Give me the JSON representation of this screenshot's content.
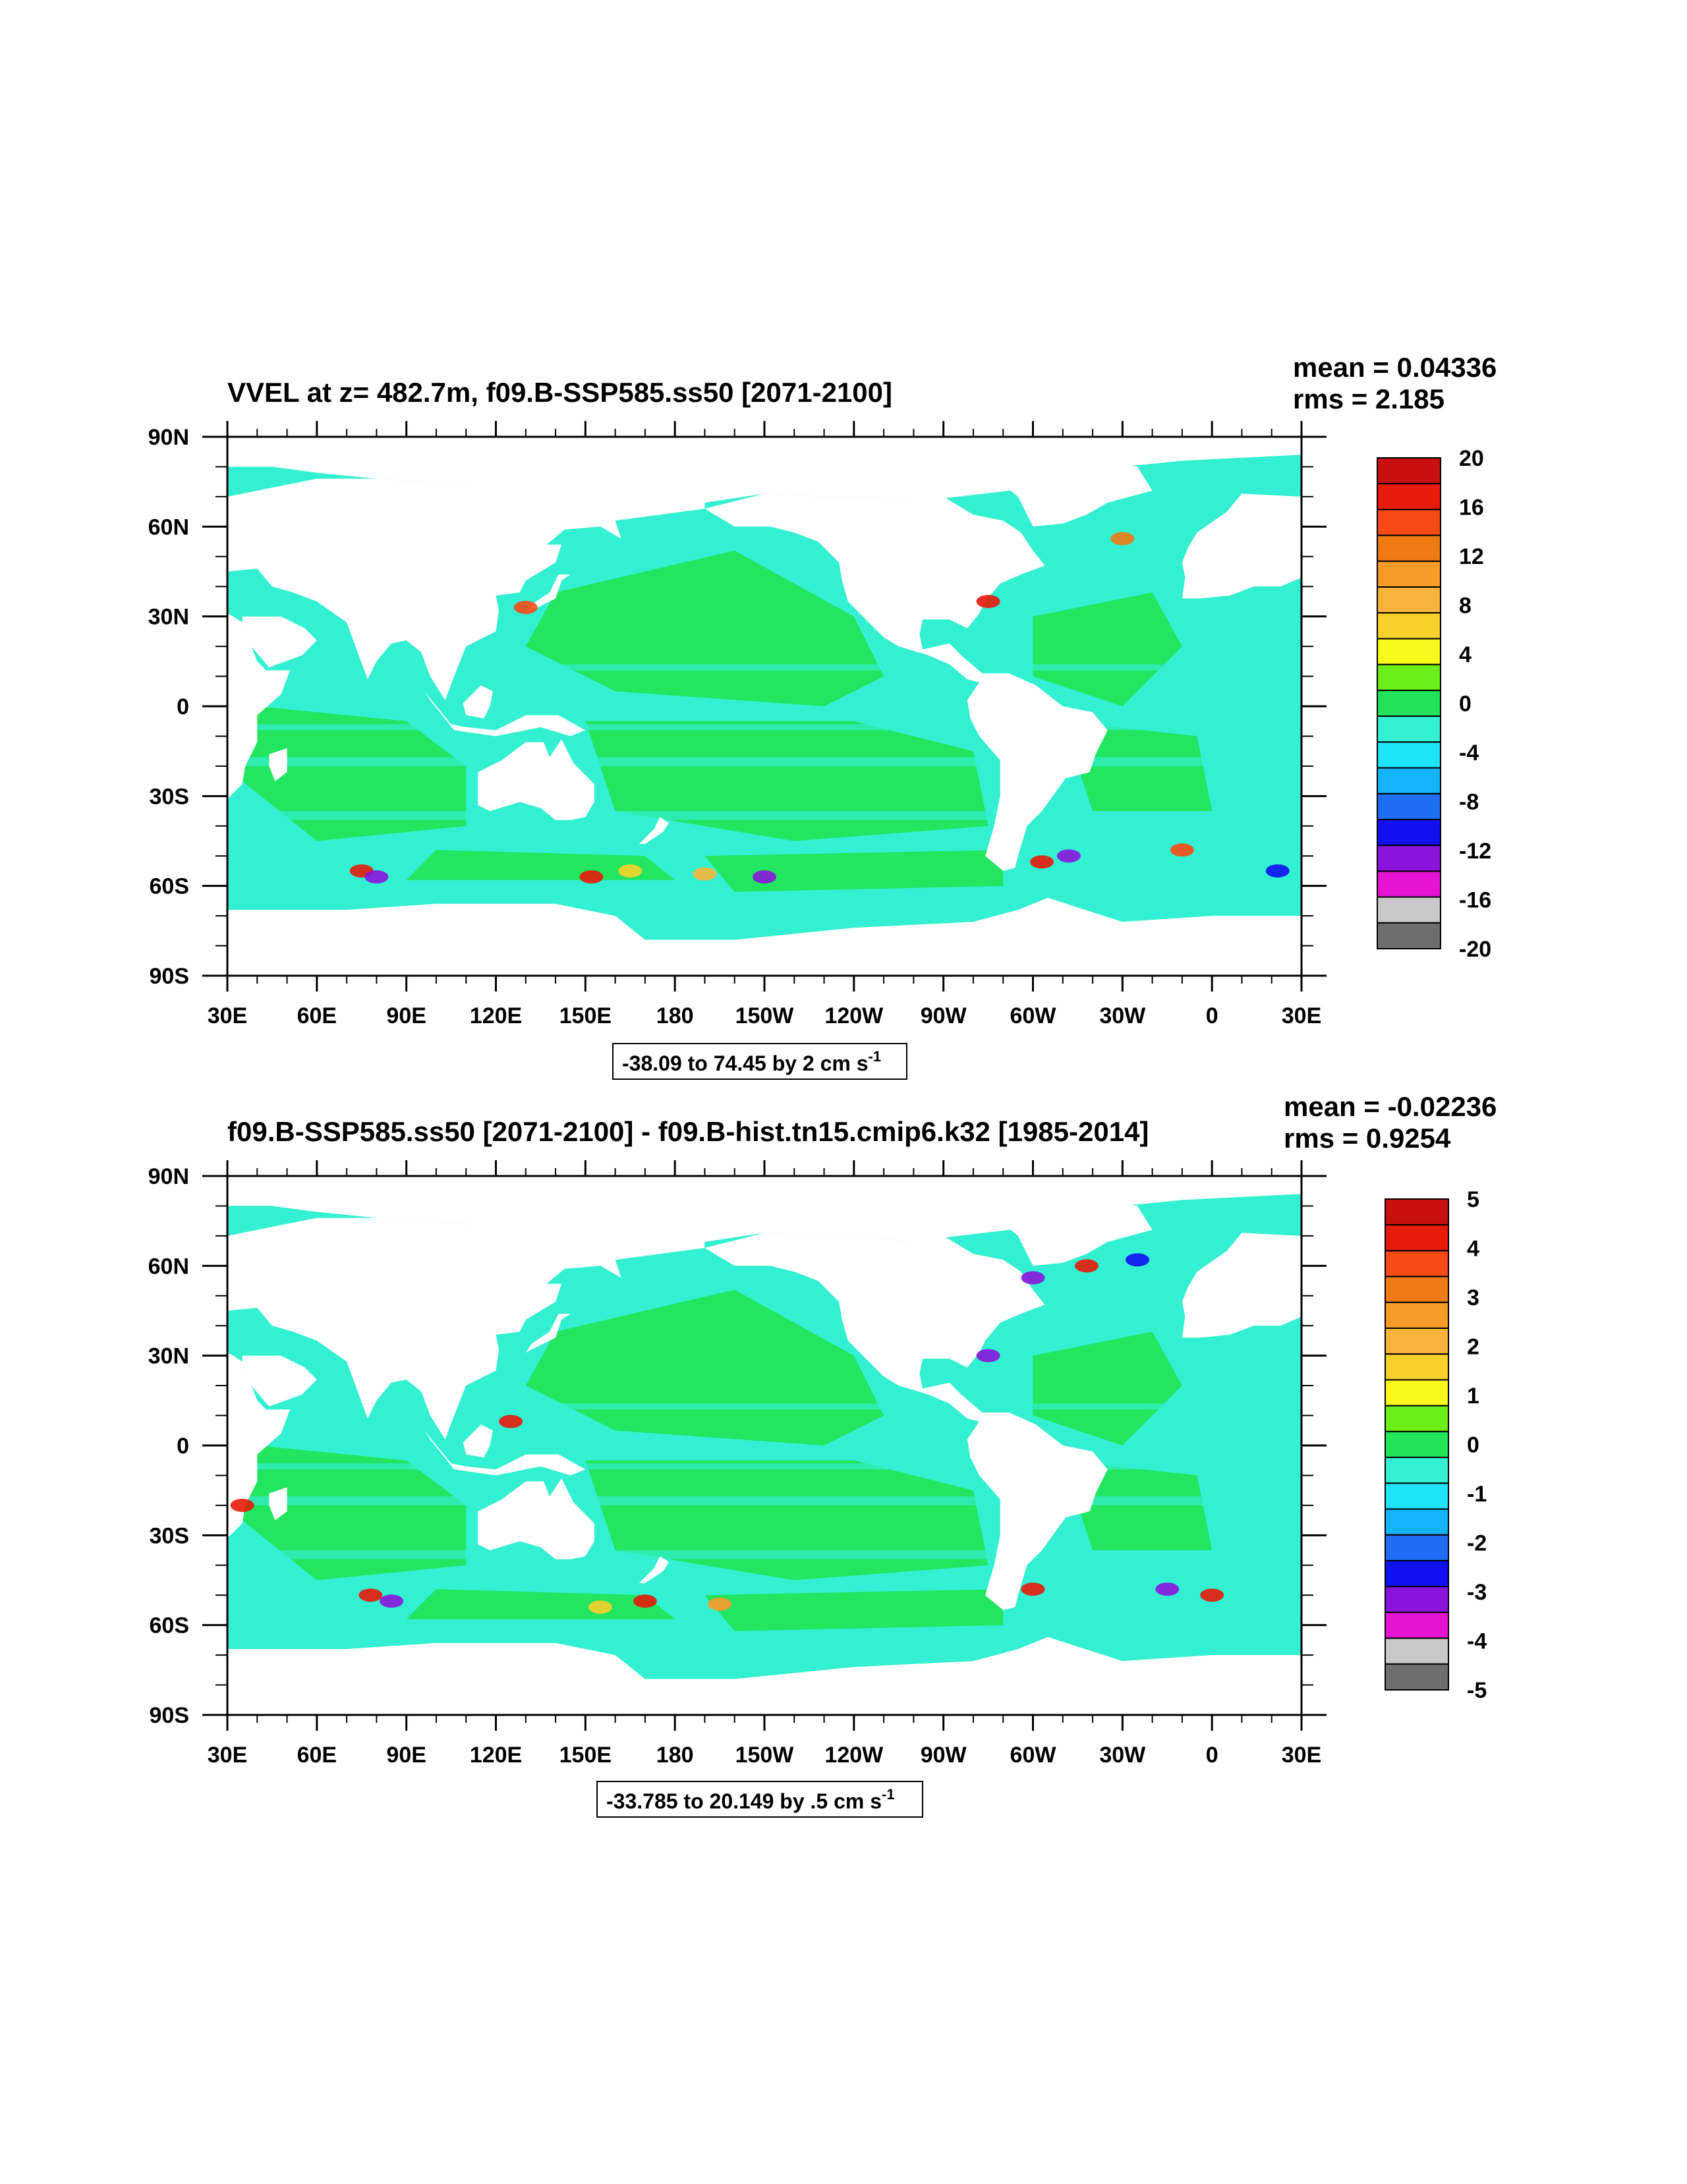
{
  "colors": {
    "ocean_green": "#22e45a",
    "ocean_cyan": "#33f0d2",
    "land": "#ffffff",
    "frame": "#000000"
  },
  "panels": [
    {
      "id": "top",
      "title": "VVEL at z= 482.7m, f09.B-SSP585.ss50 [2071-2100]",
      "stats": [
        "mean = 0.04336",
        "rms = 2.185"
      ],
      "contour_info": {
        "text": "-38.09 to 74.45 by 2 cm s",
        "sup": "-1"
      },
      "colorbar": {
        "labels": [
          "20",
          "16",
          "12",
          "8",
          "4",
          "0",
          "-4",
          "-8",
          "-12",
          "-16",
          "-20"
        ],
        "colors": [
          "#c81010",
          "#e81a0a",
          "#f84a14",
          "#f07a12",
          "#f89a28",
          "#f8b43a",
          "#f8d02a",
          "#f8f81a",
          "#6af018",
          "#22e45a",
          "#33f0d2",
          "#1ee4f8",
          "#14b4f8",
          "#1e6ef4",
          "#1010f0",
          "#8a14dc",
          "#e614d2",
          "#c8c8c8",
          "#6e6e6e"
        ]
      },
      "hotspots": [
        {
          "lon": 75,
          "lat": -55,
          "c": "#e81a0a"
        },
        {
          "lon": 80,
          "lat": -57,
          "c": "#8a14dc"
        },
        {
          "lon": 152,
          "lat": -57,
          "c": "#e81a0a"
        },
        {
          "lon": 165,
          "lat": -55,
          "c": "#f8d02a"
        },
        {
          "lon": 190,
          "lat": -56,
          "c": "#f8b43a"
        },
        {
          "lon": 210,
          "lat": -57,
          "c": "#8a14dc"
        },
        {
          "lon": 303,
          "lat": -52,
          "c": "#e81a0a"
        },
        {
          "lon": 312,
          "lat": -50,
          "c": "#8a14dc"
        },
        {
          "lon": 350,
          "lat": -48,
          "c": "#f84a14"
        },
        {
          "lon": 382,
          "lat": -55,
          "c": "#1010f0"
        },
        {
          "lon": 130,
          "lat": 33,
          "c": "#f84a14"
        },
        {
          "lon": 285,
          "lat": 35,
          "c": "#e81a0a"
        },
        {
          "lon": 330,
          "lat": 56,
          "c": "#f07a12"
        }
      ]
    },
    {
      "id": "bottom",
      "title": "f09.B-SSP585.ss50 [2071-2100] - f09.B-hist.tn15.cmip6.k32 [1985-2014]",
      "stats": [
        "mean = -0.02236",
        "rms = 0.9254"
      ],
      "contour_info": {
        "text": "-33.785 to 20.149 by .5 cm s",
        "sup": "-1"
      },
      "colorbar": {
        "labels": [
          "5",
          "4",
          "3",
          "2",
          "1",
          "0",
          "-1",
          "-2",
          "-3",
          "-4",
          "-5"
        ],
        "colors": [
          "#c81010",
          "#e81a0a",
          "#f84a14",
          "#f07a12",
          "#f89a28",
          "#f8b43a",
          "#f8d02a",
          "#f8f81a",
          "#6af018",
          "#22e45a",
          "#33f0d2",
          "#1ee4f8",
          "#14b4f8",
          "#1e6ef4",
          "#1010f0",
          "#8a14dc",
          "#e614d2",
          "#c8c8c8",
          "#6e6e6e"
        ]
      },
      "hotspots": [
        {
          "lon": 35,
          "lat": -20,
          "c": "#e81a0a"
        },
        {
          "lon": 85,
          "lat": -52,
          "c": "#8a14dc"
        },
        {
          "lon": 78,
          "lat": -50,
          "c": "#e81a0a"
        },
        {
          "lon": 155,
          "lat": -54,
          "c": "#f8d02a"
        },
        {
          "lon": 170,
          "lat": -52,
          "c": "#e81a0a"
        },
        {
          "lon": 195,
          "lat": -53,
          "c": "#f89a28"
        },
        {
          "lon": 300,
          "lat": -48,
          "c": "#e81a0a"
        },
        {
          "lon": 345,
          "lat": -48,
          "c": "#8a14dc"
        },
        {
          "lon": 360,
          "lat": -50,
          "c": "#e81a0a"
        },
        {
          "lon": 318,
          "lat": 60,
          "c": "#e81a0a"
        },
        {
          "lon": 335,
          "lat": 62,
          "c": "#1010f0"
        },
        {
          "lon": 300,
          "lat": 56,
          "c": "#8a14dc"
        },
        {
          "lon": 125,
          "lat": 8,
          "c": "#e81a0a"
        },
        {
          "lon": 285,
          "lat": 30,
          "c": "#8a14dc"
        }
      ]
    }
  ],
  "x_ticks": [
    "30E",
    "60E",
    "90E",
    "120E",
    "150E",
    "180",
    "150W",
    "120W",
    "90W",
    "60W",
    "30W",
    "0",
    "30E"
  ],
  "y_ticks": [
    "90N",
    "60N",
    "30N",
    "0",
    "30S",
    "60S",
    "90S"
  ]
}
